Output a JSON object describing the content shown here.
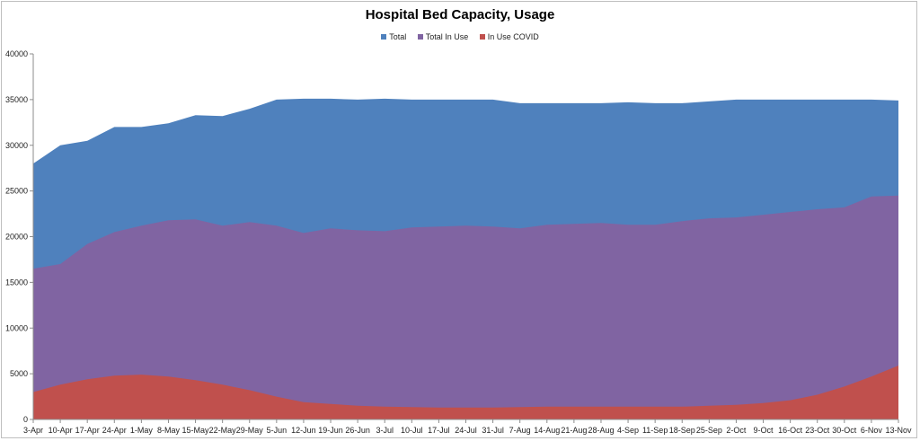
{
  "chart_data": {
    "type": "area",
    "title": "Hospital Bed Capacity, Usage",
    "xlabel": "",
    "ylabel": "",
    "ylim": [
      0,
      40000
    ],
    "yticks": [
      0,
      5000,
      10000,
      15000,
      20000,
      25000,
      30000,
      35000,
      40000
    ],
    "grid": false,
    "legend_position": "top",
    "categories": [
      "3-Apr",
      "10-Apr",
      "17-Apr",
      "24-Apr",
      "1-May",
      "8-May",
      "15-May",
      "22-May",
      "29-May",
      "5-Jun",
      "12-Jun",
      "19-Jun",
      "26-Jun",
      "3-Jul",
      "10-Jul",
      "17-Jul",
      "24-Jul",
      "31-Jul",
      "7-Aug",
      "14-Aug",
      "21-Aug",
      "28-Aug",
      "4-Sep",
      "11-Sep",
      "18-Sep",
      "25-Sep",
      "2-Oct",
      "9-Oct",
      "16-Oct",
      "23-Oct",
      "30-Oct",
      "6-Nov",
      "13-Nov"
    ],
    "series": [
      {
        "name": "Total",
        "color": "#4f81bd",
        "values": [
          28000,
          30000,
          30500,
          32000,
          32000,
          32400,
          33300,
          33200,
          34000,
          35000,
          35100,
          35100,
          35000,
          35100,
          35000,
          35000,
          35000,
          35000,
          34600,
          34600,
          34600,
          34600,
          34700,
          34600,
          34600,
          34800,
          35000,
          35000,
          35000,
          35000,
          35000,
          35000,
          34900
        ]
      },
      {
        "name": "Total In Use",
        "color": "#8064a2",
        "values": [
          16500,
          17000,
          19200,
          20500,
          21200,
          21800,
          21900,
          21200,
          21600,
          21200,
          20400,
          20900,
          20700,
          20600,
          21000,
          21100,
          21200,
          21100,
          20900,
          21300,
          21400,
          21500,
          21300,
          21300,
          21700,
          22000,
          22100,
          22400,
          22700,
          23000,
          23200,
          24400,
          24500
        ]
      },
      {
        "name": "In Use COVID",
        "color": "#c0504d",
        "values": [
          3000,
          3800,
          4400,
          4800,
          4900,
          4700,
          4300,
          3800,
          3200,
          2500,
          1900,
          1700,
          1500,
          1400,
          1350,
          1300,
          1300,
          1300,
          1350,
          1400,
          1400,
          1400,
          1400,
          1400,
          1400,
          1500,
          1600,
          1800,
          2100,
          2700,
          3600,
          4700,
          5900
        ]
      }
    ]
  }
}
